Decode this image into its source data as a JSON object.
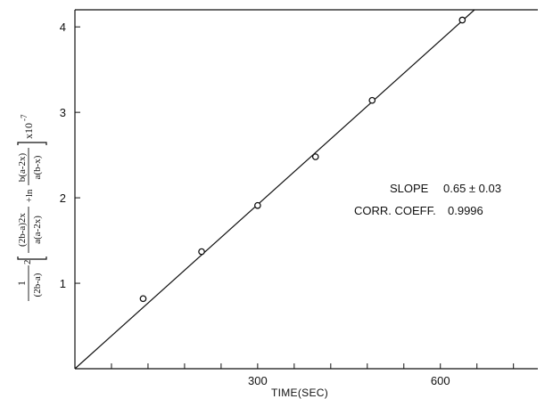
{
  "chart_data": {
    "type": "scatter",
    "xlabel": "TIME(SEC)",
    "ylabel": {
      "prefactor_num": "1",
      "prefactor_den": "(2b-a)",
      "prefactor_exp": "2",
      "frac1_num": "(2b-a)2x",
      "frac1_den": "a(a-2x)",
      "plus_ln": "+ln",
      "frac2_num": "b(a-2x)",
      "frac2_den": "a(b-x)",
      "times": "x10",
      "times_exp": "-7"
    },
    "xlim": [
      0,
      760
    ],
    "ylim": [
      0,
      4.2
    ],
    "x_ticks": [
      60,
      120,
      180,
      240,
      300,
      360,
      420,
      480,
      540,
      600,
      660,
      720
    ],
    "x_tick_labels": [
      {
        "value": 300,
        "label": "300"
      },
      {
        "value": 600,
        "label": "600"
      }
    ],
    "y_ticks": [
      {
        "value": 1,
        "label": "1"
      },
      {
        "value": 2,
        "label": "2"
      },
      {
        "value": 3,
        "label": "3"
      },
      {
        "value": 4,
        "label": "4"
      }
    ],
    "points": [
      {
        "x": 112,
        "y": 0.82
      },
      {
        "x": 208,
        "y": 1.37
      },
      {
        "x": 300,
        "y": 1.91
      },
      {
        "x": 395,
        "y": 2.48
      },
      {
        "x": 488,
        "y": 3.14
      },
      {
        "x": 636,
        "y": 4.08
      }
    ],
    "fit_line": {
      "x": [
        0,
        656
      ],
      "y": [
        0,
        4.2
      ]
    },
    "annotations": {
      "slope_label": "SLOPE",
      "slope_value": "0.65 ± 0.03",
      "corr_label": "CORR. COEFF.",
      "corr_value": "0.9996"
    },
    "grid": false
  }
}
